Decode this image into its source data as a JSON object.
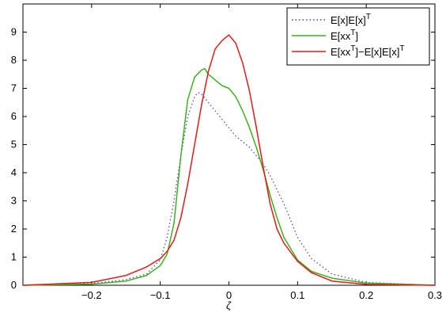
{
  "chart_data": {
    "type": "line",
    "xlabel": "ζ",
    "ylabel": "",
    "xlim": [
      -0.3,
      0.3
    ],
    "ylim": [
      0,
      10
    ],
    "xticks": [
      -0.2,
      -0.1,
      0,
      0.1,
      0.2,
      0.3
    ],
    "xtick_labels": [
      "−0.2",
      "−0.1",
      "0",
      "0.1",
      "0.2",
      "0.3"
    ],
    "yticks": [
      0,
      1,
      2,
      3,
      4,
      5,
      6,
      7,
      8,
      9
    ],
    "ytick_labels": [
      "0",
      "1",
      "2",
      "3",
      "4",
      "5",
      "6",
      "7",
      "8",
      "9"
    ],
    "grid": false,
    "legend_position": "top-right",
    "series": [
      {
        "name": "E[x]E[x]^T",
        "legend_main": "E[x]E[x]",
        "legend_sup": "T",
        "legend_tail": "",
        "legend_tail_sup": "",
        "color": "#3b3bd6",
        "style": "dotted",
        "x": [
          -0.3,
          -0.2,
          -0.15,
          -0.12,
          -0.1,
          -0.09,
          -0.08,
          -0.07,
          -0.06,
          -0.05,
          -0.045,
          -0.04,
          -0.03,
          -0.02,
          -0.01,
          0,
          0.01,
          0.02,
          0.03,
          0.04,
          0.05,
          0.06,
          0.07,
          0.08,
          0.09,
          0.1,
          0.12,
          0.15,
          0.2,
          0.3
        ],
        "y": [
          0.0,
          0.06,
          0.2,
          0.4,
          0.9,
          1.7,
          3.0,
          4.6,
          6.0,
          6.7,
          6.85,
          6.8,
          6.5,
          6.2,
          5.9,
          5.6,
          5.3,
          5.1,
          4.9,
          4.6,
          4.3,
          3.9,
          3.4,
          2.9,
          2.3,
          1.7,
          0.95,
          0.4,
          0.1,
          0.0
        ]
      },
      {
        "name": "E[xx^T]",
        "legend_main": "E[xx",
        "legend_sup": "T",
        "legend_tail": "]",
        "legend_tail_sup": "",
        "color": "#3cb31a",
        "style": "solid",
        "x": [
          -0.3,
          -0.2,
          -0.15,
          -0.12,
          -0.1,
          -0.09,
          -0.08,
          -0.07,
          -0.06,
          -0.05,
          -0.04,
          -0.035,
          -0.03,
          -0.02,
          -0.01,
          0,
          0.01,
          0.02,
          0.03,
          0.04,
          0.05,
          0.06,
          0.07,
          0.08,
          0.1,
          0.12,
          0.15,
          0.2,
          0.3
        ],
        "y": [
          0.0,
          0.04,
          0.15,
          0.35,
          0.7,
          1.1,
          2.2,
          4.6,
          6.6,
          7.4,
          7.65,
          7.7,
          7.5,
          7.3,
          7.1,
          7.0,
          6.7,
          6.2,
          5.6,
          4.9,
          4.1,
          3.2,
          2.4,
          1.7,
          0.9,
          0.5,
          0.25,
          0.08,
          0.0
        ]
      },
      {
        "name": "E[xx^T]−E[x]E[x]^T",
        "legend_main": "E[xx",
        "legend_sup": "T",
        "legend_tail": "]−E[x]E[x]",
        "legend_tail_sup": "T",
        "color": "#e31a1a",
        "style": "solid",
        "x": [
          -0.3,
          -0.2,
          -0.15,
          -0.12,
          -0.1,
          -0.09,
          -0.08,
          -0.07,
          -0.06,
          -0.05,
          -0.04,
          -0.03,
          -0.02,
          -0.01,
          0,
          0.01,
          0.02,
          0.03,
          0.04,
          0.05,
          0.06,
          0.07,
          0.08,
          0.1,
          0.12,
          0.15,
          0.2,
          0.3
        ],
        "y": [
          0.0,
          0.1,
          0.35,
          0.65,
          0.95,
          1.2,
          1.6,
          2.4,
          3.6,
          5.0,
          6.4,
          7.6,
          8.4,
          8.7,
          8.9,
          8.6,
          7.9,
          6.9,
          5.6,
          4.2,
          2.9,
          2.0,
          1.5,
          0.85,
          0.45,
          0.15,
          0.03,
          0.0
        ]
      }
    ]
  }
}
